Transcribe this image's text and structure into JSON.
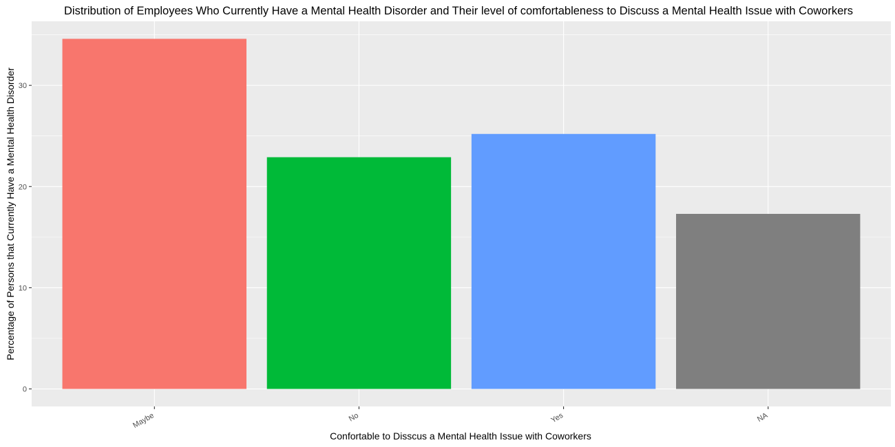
{
  "chart_data": {
    "type": "bar",
    "title": "Distribution of Employees Who Currently Have a Mental Health Disorder and Their level of comfortableness to Discuss a Mental Health Issue with Coworkers",
    "xlabel": "Confortable to Disscus a Mental Health Issue with Coworkers",
    "ylabel": "Percentage of Persons that Currently Have a Mental Health Disorder",
    "categories": [
      "Maybe",
      "No",
      "Yes",
      "NA"
    ],
    "values": [
      34.6,
      22.9,
      25.2,
      17.3
    ],
    "colors": [
      "#F8766D",
      "#00BA38",
      "#619CFF",
      "#7F7F7F"
    ],
    "ylim": [
      -1.73,
      36.33
    ],
    "yticks": [
      0,
      10,
      20,
      30
    ],
    "ytick_labels": [
      "0",
      "10",
      "20",
      "30"
    ],
    "grid": true,
    "panel_background": "#EBEBEB",
    "grid_color": "#FFFFFF",
    "legend": "none"
  }
}
